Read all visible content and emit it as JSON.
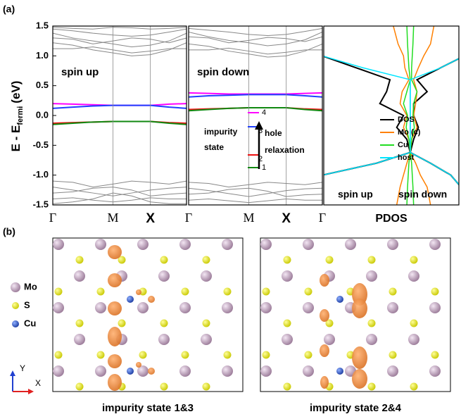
{
  "chart_data": [
    {
      "type": "line",
      "panel_label": "(a)",
      "ylabel": "E - E",
      "ylabel_sub": "fermi",
      "ylabel_unit": "(eV)",
      "ylim": [
        -1.5,
        1.5
      ],
      "yticks": [
        {
          "value": 1.5,
          "label": "1.5"
        },
        {
          "value": 1.0,
          "label": "1.0"
        },
        {
          "value": 0.5,
          "label": "0.5"
        },
        {
          "value": 0,
          "label": "0.0"
        },
        {
          "value": -0.5,
          "label": "-0.5"
        },
        {
          "value": -1.0,
          "label": "-1.0"
        },
        {
          "value": -1.5,
          "label": "-1.5"
        }
      ],
      "xlim": [
        0,
        1
      ],
      "xticks": [
        {
          "value": 0,
          "label": "Γ"
        },
        {
          "value": 0.45,
          "label": "M"
        },
        {
          "value": 0.73,
          "label": "X"
        }
      ],
      "annotation": "spin up",
      "x": [
        0,
        0.15,
        0.3,
        0.45,
        0.59,
        0.73,
        0.87,
        1
      ],
      "band_color": "#888888",
      "bands": [
        [
          1.45,
          1.42,
          1.38,
          1.35,
          1.33,
          1.35,
          1.4,
          1.45
        ],
        [
          1.38,
          1.3,
          1.25,
          1.2,
          1.15,
          1.18,
          1.25,
          1.38
        ],
        [
          1.3,
          1.28,
          1.2,
          1.25,
          1.3,
          1.28,
          1.22,
          1.3
        ],
        [
          1.22,
          1.18,
          1.1,
          1.05,
          1.0,
          1.02,
          1.1,
          1.22
        ],
        [
          1.12,
          1.12,
          1.15,
          1.1,
          1.05,
          1.08,
          1.12,
          1.12
        ],
        [
          1.48,
          1.46,
          1.45,
          1.48,
          1.47,
          1.45,
          1.46,
          1.48
        ],
        [
          -1.1,
          -1.12,
          -1.2,
          -1.15,
          -1.1,
          -1.12,
          -1.15,
          -1.1
        ],
        [
          -1.2,
          -1.25,
          -1.3,
          -1.35,
          -1.3,
          -1.25,
          -1.22,
          -1.2
        ],
        [
          -1.3,
          -1.28,
          -1.22,
          -1.2,
          -1.25,
          -1.35,
          -1.32,
          -1.3
        ],
        [
          -1.4,
          -1.38,
          -1.42,
          -1.45,
          -1.42,
          -1.38,
          -1.4,
          -1.4
        ],
        [
          -1.48,
          -1.45,
          -1.4,
          -1.3,
          -1.35,
          -1.45,
          -1.48,
          -1.48
        ]
      ],
      "series": [
        {
          "color": "#ff00ff",
          "values": [
            0.2,
            0.19,
            0.18,
            0.17,
            0.17,
            0.17,
            0.19,
            0.2
          ]
        },
        {
          "color": "#1f3fff",
          "values": [
            0.12,
            0.14,
            0.16,
            0.17,
            0.17,
            0.17,
            0.14,
            0.12
          ]
        },
        {
          "color": "#ee1111",
          "values": [
            -0.13,
            -0.12,
            -0.11,
            -0.1,
            -0.1,
            -0.1,
            -0.12,
            -0.13
          ]
        },
        {
          "color": "#118811",
          "values": [
            -0.15,
            -0.13,
            -0.11,
            -0.1,
            -0.1,
            -0.1,
            -0.13,
            -0.15
          ]
        }
      ]
    },
    {
      "type": "line",
      "ylim": [
        -1.5,
        1.5
      ],
      "xlim": [
        0,
        1
      ],
      "xticks": [
        {
          "value": 0,
          "label": "Γ"
        },
        {
          "value": 0.45,
          "label": "M"
        },
        {
          "value": 0.73,
          "label": "X"
        },
        {
          "value": 1,
          "label": "Γ"
        }
      ],
      "annotation": "spin down",
      "legend_notes": {
        "group": [
          "impurity",
          "state"
        ],
        "upper": "hole",
        "lower": "relaxation"
      },
      "x": [
        0,
        0.15,
        0.3,
        0.45,
        0.59,
        0.73,
        0.87,
        1
      ],
      "band_color": "#888888",
      "bands": [
        [
          1.46,
          1.43,
          1.4,
          1.36,
          1.34,
          1.36,
          1.41,
          1.46
        ],
        [
          1.4,
          1.32,
          1.26,
          1.22,
          1.17,
          1.2,
          1.27,
          1.4
        ],
        [
          1.32,
          1.3,
          1.22,
          1.26,
          1.31,
          1.29,
          1.24,
          1.32
        ],
        [
          1.2,
          1.16,
          1.08,
          1.03,
          0.98,
          1.0,
          1.08,
          1.2
        ],
        [
          1.1,
          1.1,
          1.13,
          1.08,
          1.03,
          1.06,
          1.1,
          1.1
        ],
        [
          -1.12,
          -1.14,
          -1.2,
          -1.16,
          -1.12,
          -1.14,
          -1.16,
          -1.12
        ],
        [
          -1.22,
          -1.26,
          -1.31,
          -1.36,
          -1.31,
          -1.26,
          -1.23,
          -1.22
        ],
        [
          -1.32,
          -1.3,
          -1.24,
          -1.22,
          -1.27,
          -1.36,
          -1.33,
          -1.32
        ],
        [
          -1.42,
          -1.4,
          -1.43,
          -1.46,
          -1.43,
          -1.4,
          -1.42,
          -1.42
        ]
      ],
      "series": [
        {
          "name": "4",
          "color": "#ff00ff",
          "values": [
            0.38,
            0.37,
            0.36,
            0.36,
            0.36,
            0.36,
            0.37,
            0.38
          ]
        },
        {
          "name": "3",
          "color": "#1f3fff",
          "values": [
            0.31,
            0.33,
            0.34,
            0.35,
            0.35,
            0.35,
            0.33,
            0.31
          ]
        },
        {
          "name": "2",
          "color": "#ee1111",
          "values": [
            0.1,
            0.11,
            0.12,
            0.13,
            0.13,
            0.13,
            0.11,
            0.1
          ]
        },
        {
          "name": "1",
          "color": "#118811",
          "values": [
            0.08,
            0.1,
            0.12,
            0.13,
            0.13,
            0.13,
            0.1,
            0.08
          ]
        }
      ]
    },
    {
      "type": "dos",
      "ylim": [
        -1.5,
        1.5
      ],
      "xlim": [
        -1.28,
        0.72
      ],
      "xlabel": "PDOS",
      "annotations": [
        "spin up",
        "spin down"
      ],
      "energies": [
        -1.5,
        -1.2,
        -1.0,
        -0.8,
        -0.62,
        -0.4,
        -0.2,
        0,
        0.2,
        0.4,
        0.6,
        0.8,
        1.0,
        1.2,
        1.5
      ],
      "series": [
        {
          "name": "DOS",
          "color": "#000000",
          "up": [
            -1.6,
            -1.45,
            -1.3,
            -0.5,
            0,
            -0.05,
            -0.2,
            -0.1,
            -0.45,
            -0.35,
            -0.3,
            -0.8,
            -1.3,
            -1.45,
            -1.6
          ],
          "down": [
            0.85,
            0.75,
            0.6,
            0.3,
            0,
            0.05,
            0.12,
            0.05,
            0.05,
            0.25,
            0.1,
            0.45,
            0.8,
            0.9,
            1.0
          ]
        },
        {
          "name": "Mo (c)",
          "color": "#ff8000",
          "up": [
            -0.2,
            -0.15,
            -0.1,
            -0.05,
            0,
            -0.02,
            -0.1,
            -0.05,
            -0.15,
            -0.12,
            -0.02,
            -0.08,
            -0.1,
            -0.18,
            -0.25
          ],
          "down": [
            0.3,
            0.25,
            0.15,
            0.08,
            0,
            0.02,
            0.1,
            0.05,
            0.08,
            0.1,
            0.05,
            0.12,
            0.2,
            0.3,
            0.35
          ]
        },
        {
          "name": "Cu",
          "color": "#22dd22",
          "up": [
            -0.05,
            -0.04,
            -0.03,
            -0.02,
            0,
            -0.02,
            -0.06,
            -0.04,
            -0.1,
            -0.05,
            0,
            -0.02,
            -0.03,
            -0.04,
            -0.05
          ],
          "down": [
            0.05,
            0.04,
            0.03,
            0.02,
            0,
            0.02,
            0.06,
            0.04,
            0.05,
            0.1,
            0.02,
            0.02,
            0.03,
            0.04,
            0.05
          ]
        },
        {
          "name": "host",
          "color": "#00e5ff",
          "up": [
            -1.6,
            -1.45,
            -1.3,
            -0.5,
            0,
            0,
            0,
            0,
            0,
            0,
            0,
            -0.7,
            -1.3,
            -1.45,
            -1.6
          ],
          "down": [
            0.85,
            0.75,
            0.6,
            0.3,
            0,
            0,
            0,
            0,
            0,
            0,
            0,
            0.45,
            0.8,
            0.9,
            1.0
          ]
        }
      ]
    }
  ],
  "panel_b": {
    "label": "(b)",
    "legend": [
      "Mo",
      "S",
      "Cu"
    ],
    "axes": [
      "Y",
      "X"
    ],
    "captions": [
      "impurity state 1&3",
      "impurity state 2&4"
    ]
  }
}
